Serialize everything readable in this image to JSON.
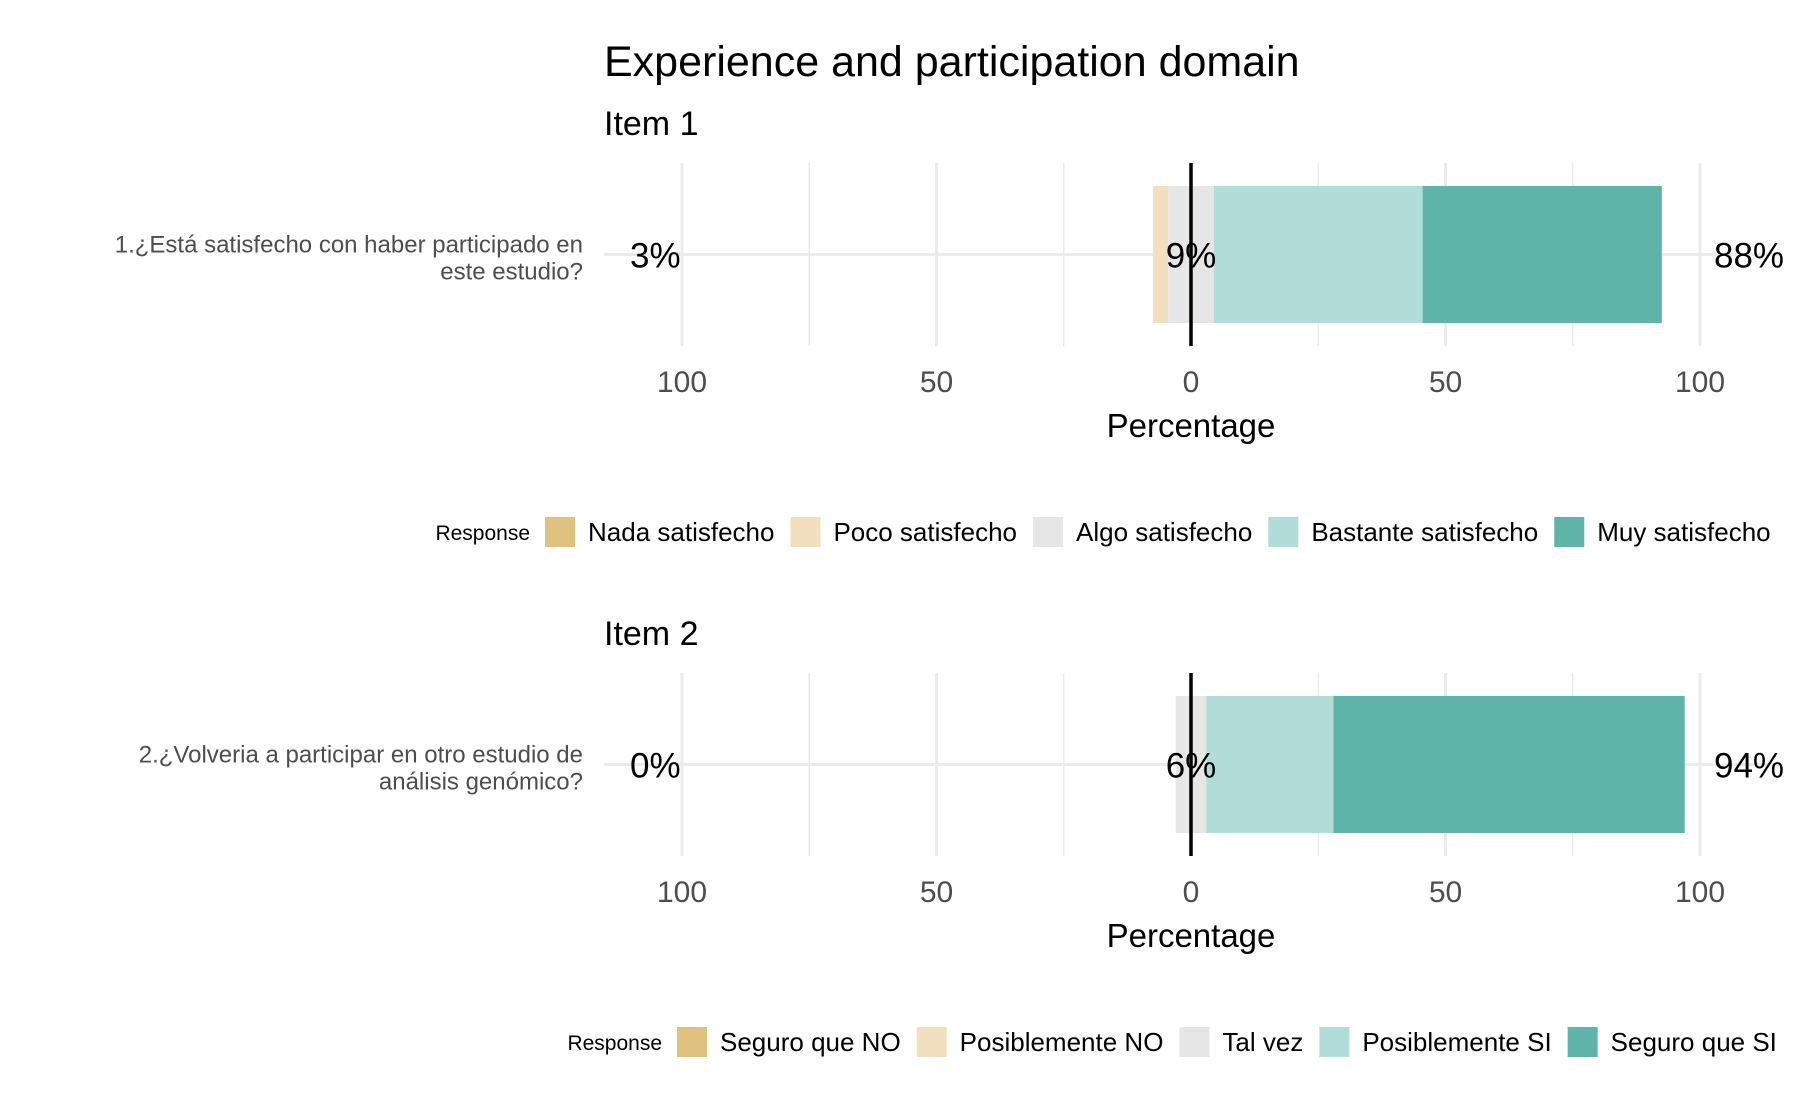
{
  "title": "Experience and participation domain",
  "chart_data": [
    {
      "type": "bar",
      "subtitle": "Item 1",
      "question_lines": [
        "1.¿Está satisfecho con haber participado en",
        "este estudio?"
      ],
      "xlabel": "Percentage",
      "xlim": [
        -100,
        100
      ],
      "ticks": [
        {
          "value": -100,
          "label": "100"
        },
        {
          "value": -50,
          "label": "50"
        },
        {
          "value": 0,
          "label": "0"
        },
        {
          "value": 50,
          "label": "50"
        },
        {
          "value": 100,
          "label": "100"
        }
      ],
      "legend_title": "Response",
      "series": [
        {
          "name": "Nada satisfecho",
          "value": 0,
          "color": "#dfc27d"
        },
        {
          "name": "Poco satisfecho",
          "value": 3,
          "color": "#f2dfbd"
        },
        {
          "name": "Algo satisfecho",
          "value": 9,
          "color": "#e6e6e6"
        },
        {
          "name": "Bastante satisfecho",
          "value": 41,
          "color": "#b1dcd8"
        },
        {
          "name": "Muy satisfecho",
          "value": 47,
          "color": "#5fb4aa"
        }
      ],
      "labels": {
        "low": "3%",
        "neutral": "9%",
        "high": "88%"
      }
    },
    {
      "type": "bar",
      "subtitle": "Item 2",
      "question_lines": [
        "2.¿Volveria a participar en otro estudio de",
        "análisis genómico?"
      ],
      "xlabel": "Percentage",
      "xlim": [
        -100,
        100
      ],
      "ticks": [
        {
          "value": -100,
          "label": "100"
        },
        {
          "value": -50,
          "label": "50"
        },
        {
          "value": 0,
          "label": "0"
        },
        {
          "value": 50,
          "label": "50"
        },
        {
          "value": 100,
          "label": "100"
        }
      ],
      "legend_title": "Response",
      "series": [
        {
          "name": "Seguro que NO",
          "value": 0,
          "color": "#dfc27d"
        },
        {
          "name": "Posiblemente NO",
          "value": 0,
          "color": "#f2dfbd"
        },
        {
          "name": "Tal vez",
          "value": 6,
          "color": "#e6e6e6"
        },
        {
          "name": "Posiblemente SI",
          "value": 25,
          "color": "#b1dcd8"
        },
        {
          "name": "Seguro que SI",
          "value": 69,
          "color": "#5fb4aa"
        }
      ],
      "labels": {
        "low": "0%",
        "neutral": "6%",
        "high": "94%"
      }
    }
  ]
}
